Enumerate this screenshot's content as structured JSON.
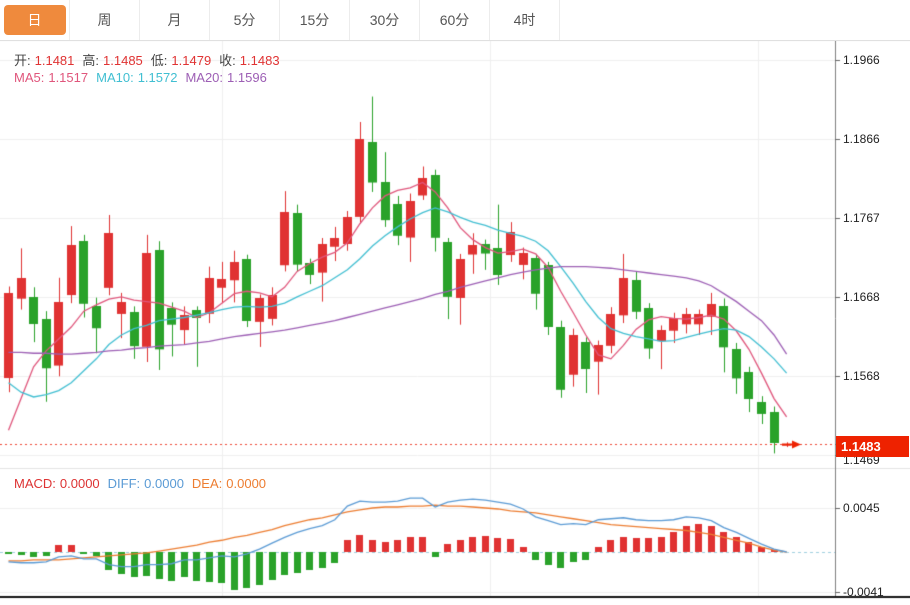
{
  "tabs": {
    "items": [
      {
        "name": "tab-day",
        "label": "日",
        "selected": true
      },
      {
        "name": "tab-week",
        "label": "周",
        "selected": false
      },
      {
        "name": "tab-month",
        "label": "月",
        "selected": false
      },
      {
        "name": "tab-5min",
        "label": "5分",
        "selected": false
      },
      {
        "name": "tab-15min",
        "label": "15分",
        "selected": false
      },
      {
        "name": "tab-30min",
        "label": "30分",
        "selected": false
      },
      {
        "name": "tab-60min",
        "label": "60分",
        "selected": false
      },
      {
        "name": "tab-4hour",
        "label": "4时",
        "selected": false
      }
    ]
  },
  "quote": {
    "items": [
      {
        "name": "open",
        "label": "开:",
        "value": "1.1481"
      },
      {
        "name": "high",
        "label": "高:",
        "value": "1.1485"
      },
      {
        "name": "low",
        "label": "低:",
        "value": "1.1479"
      },
      {
        "name": "close",
        "label": "收:",
        "value": "1.1483"
      }
    ],
    "label_color": "#444",
    "value_color": "#e03333"
  },
  "ma_legend": [
    {
      "name": "ma5",
      "label": "MA5:",
      "value": "1.1517",
      "color": "#e0567c"
    },
    {
      "name": "ma10",
      "label": "MA10:",
      "value": "1.1572",
      "color": "#41bfd2"
    },
    {
      "name": "ma20",
      "label": "MA20:",
      "value": "1.1596",
      "color": "#9d5fb5"
    }
  ],
  "macd_legend": [
    {
      "name": "macd",
      "label": "MACD:",
      "value": "0.0000",
      "color": "#dd3333"
    },
    {
      "name": "diff",
      "label": "DIFF:",
      "value": "0.0000",
      "color": "#5b9bd5"
    },
    {
      "name": "dea",
      "label": "DEA:",
      "value": "0.0000",
      "color": "#ed7d31"
    }
  ],
  "axis": {
    "price_ticks": [
      "1.1966",
      "1.1866",
      "1.1767",
      "1.1668",
      "1.1568",
      "1.1469"
    ],
    "macd_ticks": [
      "0.0045",
      "-0.0041"
    ],
    "current_price": "1.1483"
  },
  "colors": {
    "up": "#e03232",
    "down": "#2aa22a",
    "tab_selected": "#ef8a3d",
    "ma5": "#e0567c",
    "ma10": "#41bfd2",
    "ma20": "#9d5fb5",
    "diff": "#5b9bd5",
    "dea": "#ed7d31",
    "current_line": "#ef4836",
    "zero_line": "#9fd0e0",
    "grid": "#f0f0f0",
    "axis_line": "#808080",
    "tag_bg": "#ee2200"
  },
  "chart_data": {
    "type": "candlestick",
    "title": "",
    "price_axis": {
      "min": 1.1469,
      "max": 1.1966,
      "ticks": [
        1.1966,
        1.1866,
        1.1767,
        1.1668,
        1.1568,
        1.1469
      ],
      "current": 1.1483
    },
    "candles": [
      [
        1.1566,
        1.1681,
        1.1548,
        1.1673
      ],
      [
        1.1666,
        1.1729,
        1.1652,
        1.1692
      ],
      [
        1.1668,
        1.168,
        1.1611,
        1.1634
      ],
      [
        1.164,
        1.165,
        1.1536,
        1.1578
      ],
      [
        1.1582,
        1.1692,
        1.1568,
        1.1662
      ],
      [
        1.167,
        1.1757,
        1.166,
        1.1733
      ],
      [
        1.1738,
        1.1746,
        1.1642,
        1.1659
      ],
      [
        1.1657,
        1.1667,
        1.1597,
        1.1629
      ],
      [
        1.1679,
        1.1771,
        1.167,
        1.1748
      ],
      [
        1.1646,
        1.1673,
        1.1616,
        1.1661
      ],
      [
        1.1649,
        1.1656,
        1.159,
        1.1606
      ],
      [
        1.1605,
        1.1746,
        1.1586,
        1.1723
      ],
      [
        1.1727,
        1.1738,
        1.1576,
        1.1602
      ],
      [
        1.1654,
        1.1661,
        1.1593,
        1.1633
      ],
      [
        1.1626,
        1.1656,
        1.1608,
        1.1645
      ],
      [
        1.1651,
        1.1656,
        1.158,
        1.1641
      ],
      [
        1.1647,
        1.1706,
        1.1635,
        1.1692
      ],
      [
        1.1679,
        1.1712,
        1.166,
        1.169
      ],
      [
        1.1689,
        1.1726,
        1.1661,
        1.1712
      ],
      [
        1.1715,
        1.1721,
        1.163,
        1.1637
      ],
      [
        1.1636,
        1.1671,
        1.1605,
        1.1666
      ],
      [
        1.164,
        1.168,
        1.1632,
        1.167
      ],
      [
        1.1708,
        1.1801,
        1.17,
        1.1775
      ],
      [
        1.1774,
        1.1784,
        1.17,
        1.1709
      ],
      [
        1.171,
        1.1716,
        1.1684,
        1.1695
      ],
      [
        1.1699,
        1.1742,
        1.1662,
        1.1735
      ],
      [
        1.1731,
        1.1756,
        1.1713,
        1.1742
      ],
      [
        1.1734,
        1.1776,
        1.1726,
        1.1768
      ],
      [
        1.1768,
        1.1888,
        1.176,
        1.1866
      ],
      [
        1.1863,
        1.192,
        1.18,
        1.1812
      ],
      [
        1.1812,
        1.185,
        1.1756,
        1.1764
      ],
      [
        1.1785,
        1.1795,
        1.1733,
        1.1745
      ],
      [
        1.1742,
        1.1798,
        1.1712,
        1.1788
      ],
      [
        1.1796,
        1.1832,
        1.179,
        1.1818
      ],
      [
        1.1821,
        1.1828,
        1.1725,
        1.1742
      ],
      [
        1.1737,
        1.1742,
        1.164,
        1.1668
      ],
      [
        1.1666,
        1.1722,
        1.1633,
        1.1715
      ],
      [
        1.1721,
        1.1748,
        1.1697,
        1.1733
      ],
      [
        1.1734,
        1.174,
        1.1702,
        1.1722
      ],
      [
        1.1729,
        1.1784,
        1.1683,
        1.1695
      ],
      [
        1.1721,
        1.1762,
        1.1712,
        1.175
      ],
      [
        1.1708,
        1.173,
        1.169,
        1.1723
      ],
      [
        1.1717,
        1.1722,
        1.1652,
        1.1672
      ],
      [
        1.1708,
        1.1712,
        1.162,
        1.163
      ],
      [
        1.163,
        1.1638,
        1.1541,
        1.1551
      ],
      [
        1.157,
        1.1628,
        1.1555,
        1.162
      ],
      [
        1.1611,
        1.1617,
        1.1547,
        1.1577
      ],
      [
        1.1586,
        1.1613,
        1.1545,
        1.1607
      ],
      [
        1.1607,
        1.1655,
        1.1597,
        1.1647
      ],
      [
        1.1645,
        1.1722,
        1.1635,
        1.1692
      ],
      [
        1.1689,
        1.17,
        1.164,
        1.1649
      ],
      [
        1.1654,
        1.166,
        1.159,
        1.1603
      ],
      [
        1.1612,
        1.1632,
        1.1577,
        1.1626
      ],
      [
        1.1626,
        1.1648,
        1.161,
        1.1642
      ],
      [
        1.1633,
        1.1654,
        1.1622,
        1.1646
      ],
      [
        1.1633,
        1.1652,
        1.162,
        1.1646
      ],
      [
        1.1643,
        1.1673,
        1.162,
        1.1659
      ],
      [
        1.1657,
        1.1666,
        1.1573,
        1.1605
      ],
      [
        1.1603,
        1.161,
        1.1546,
        1.1566
      ],
      [
        1.1574,
        1.158,
        1.1523,
        1.154
      ],
      [
        1.1536,
        1.1543,
        1.1508,
        1.1521
      ],
      [
        1.1523,
        1.153,
        1.1471,
        1.1484
      ],
      [
        1.1481,
        1.1485,
        1.1479,
        1.1483
      ]
    ],
    "ma5": [
      1.15,
      1.154,
      1.158,
      1.16,
      1.1615,
      1.163,
      1.165,
      1.1658,
      1.1665,
      1.1668,
      1.1664,
      1.1662,
      1.166,
      1.1655,
      1.165,
      1.1642,
      1.1648,
      1.166,
      1.1672,
      1.1675,
      1.1673,
      1.1668,
      1.168,
      1.17,
      1.171,
      1.1718,
      1.1724,
      1.1736,
      1.176,
      1.178,
      1.1795,
      1.1802,
      1.1805,
      1.1812,
      1.18,
      1.178,
      1.1755,
      1.174,
      1.173,
      1.1723,
      1.1725,
      1.1728,
      1.1722,
      1.1705,
      1.1675,
      1.1648,
      1.162,
      1.1595,
      1.159,
      1.1607,
      1.1627,
      1.1639,
      1.1643,
      1.1641,
      1.164,
      1.1642,
      1.1645,
      1.164,
      1.1625,
      1.1602,
      1.1572,
      1.154,
      1.1517
    ],
    "ma10": [
      1.156,
      1.1548,
      1.1542,
      1.1545,
      1.155,
      1.156,
      1.1575,
      1.159,
      1.1608,
      1.162,
      1.1628,
      1.1632,
      1.1638,
      1.164,
      1.1642,
      1.1645,
      1.1648,
      1.1652,
      1.1655,
      1.1656,
      1.1655,
      1.1656,
      1.166,
      1.1668,
      1.1675,
      1.1682,
      1.1692,
      1.1702,
      1.1716,
      1.1732,
      1.1745,
      1.1756,
      1.1766,
      1.1774,
      1.178,
      1.1775,
      1.1768,
      1.1762,
      1.1758,
      1.1752,
      1.1748,
      1.1744,
      1.1738,
      1.1726,
      1.1706,
      1.1685,
      1.1662,
      1.1642,
      1.1628,
      1.1622,
      1.1618,
      1.1615,
      1.1612,
      1.1613,
      1.1617,
      1.1621,
      1.1625,
      1.1628,
      1.1626,
      1.1618,
      1.1605,
      1.159,
      1.1572
    ],
    "ma20": [
      1.1598,
      1.1598,
      1.1597,
      1.1597,
      1.1596,
      1.1596,
      1.1597,
      1.1598,
      1.16,
      1.1601,
      1.1603,
      1.1604,
      1.1606,
      1.1607,
      1.1608,
      1.161,
      1.1612,
      1.1615,
      1.1618,
      1.162,
      1.1622,
      1.1624,
      1.1626,
      1.1629,
      1.1632,
      1.1635,
      1.1638,
      1.1642,
      1.1646,
      1.165,
      1.1654,
      1.1658,
      1.1662,
      1.1666,
      1.1671,
      1.1675,
      1.168,
      1.1684,
      1.1688,
      1.1692,
      1.1696,
      1.1699,
      1.1702,
      1.1704,
      1.1706,
      1.1706,
      1.1706,
      1.1705,
      1.1704,
      1.1702,
      1.17,
      1.1698,
      1.1696,
      1.1694,
      1.1692,
      1.1688,
      1.1682,
      1.1672,
      1.1662,
      1.165,
      1.1638,
      1.162,
      1.1596
    ],
    "macd": {
      "axis_ticks": [
        0.0045,
        -0.0041
      ],
      "hist": [
        -0.0002,
        -0.0003,
        -0.0005,
        -0.0004,
        0.0007,
        0.0007,
        -0.0002,
        -0.0004,
        -0.0018,
        -0.0023,
        -0.0026,
        -0.0025,
        -0.0028,
        -0.003,
        -0.0026,
        -0.003,
        -0.0031,
        -0.0032,
        -0.0039,
        -0.0037,
        -0.0034,
        -0.0029,
        -0.0024,
        -0.0021,
        -0.0018,
        -0.0016,
        -0.0011,
        0.0012,
        0.0017,
        0.0012,
        0.001,
        0.0012,
        0.0015,
        0.0015,
        -0.0005,
        0.0008,
        0.0012,
        0.0015,
        0.0016,
        0.0014,
        0.0013,
        0.0005,
        -0.0008,
        -0.0013,
        -0.0016,
        -0.001,
        -0.0008,
        0.0005,
        0.0012,
        0.0015,
        0.0014,
        0.0014,
        0.0015,
        0.002,
        0.0027,
        0.0029,
        0.0027,
        0.002,
        0.0015,
        0.001,
        0.0005,
        0.0002,
        0.0
      ],
      "diff": [
        -0.001,
        -0.0011,
        -0.0011,
        -0.001,
        -0.0005,
        -0.0004,
        -0.0007,
        -0.0007,
        -0.0013,
        -0.0015,
        -0.0015,
        -0.0013,
        -0.0013,
        -0.0012,
        -0.0008,
        -0.0008,
        -0.0006,
        -0.0004,
        -0.0005,
        -0.0002,
        0.0003,
        0.0009,
        0.0015,
        0.002,
        0.0024,
        0.0027,
        0.0033,
        0.0047,
        0.0052,
        0.0051,
        0.0051,
        0.0052,
        0.0055,
        0.0055,
        0.0046,
        0.0051,
        0.0053,
        0.0054,
        0.0053,
        0.0051,
        0.0049,
        0.0044,
        0.0036,
        0.0032,
        0.0028,
        0.0029,
        0.0028,
        0.0033,
        0.0034,
        0.0035,
        0.0033,
        0.0032,
        0.0032,
        0.0033,
        0.0036,
        0.0035,
        0.0032,
        0.0025,
        0.002,
        0.0014,
        0.0008,
        0.0003,
        0.0
      ],
      "dea": [
        -0.0009,
        -0.0009,
        -0.0008,
        -0.0008,
        -0.0008,
        -0.0007,
        -0.0006,
        -0.0005,
        -0.0004,
        -0.0003,
        -0.0002,
        -0.0001,
        0.0001,
        0.0003,
        0.0005,
        0.0007,
        0.001,
        0.0012,
        0.0015,
        0.0017,
        0.002,
        0.0023,
        0.0027,
        0.003,
        0.0033,
        0.0035,
        0.0038,
        0.0041,
        0.0043,
        0.0045,
        0.0046,
        0.0046,
        0.0047,
        0.0047,
        0.0048,
        0.0047,
        0.0047,
        0.0046,
        0.0045,
        0.0044,
        0.0042,
        0.0041,
        0.004,
        0.0038,
        0.0036,
        0.0034,
        0.0032,
        0.003,
        0.0028,
        0.0027,
        0.0026,
        0.0025,
        0.0024,
        0.0023,
        0.0022,
        0.002,
        0.0018,
        0.0015,
        0.0012,
        0.0009,
        0.0005,
        0.0002,
        0.0
      ]
    }
  }
}
